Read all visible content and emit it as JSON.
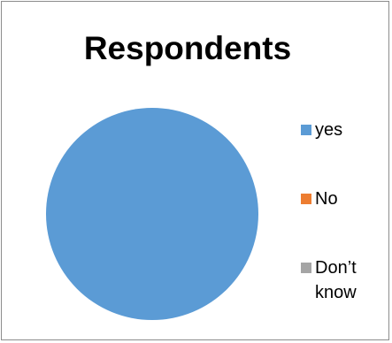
{
  "chart_data": {
    "type": "pie",
    "title": "Respondents",
    "categories": [
      "yes",
      "No",
      "Don’t\nknow"
    ],
    "values": [
      100,
      0,
      0
    ],
    "colors": [
      "#5b9bd5",
      "#ed7d31",
      "#a5a5a5"
    ],
    "legend_position": "right"
  }
}
